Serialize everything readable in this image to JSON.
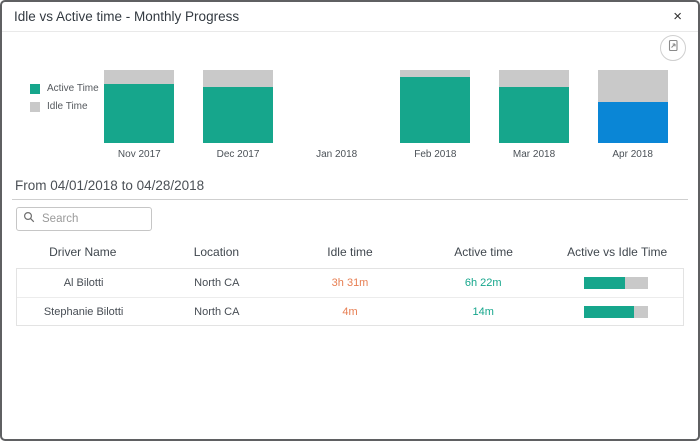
{
  "dialog": {
    "title": "Idle vs Active time - Monthly Progress",
    "close_label": "×"
  },
  "toolbar": {
    "export_icon": "export-image-icon"
  },
  "chart_data": {
    "type": "bar",
    "stacked": true,
    "normalized_to_pct": true,
    "categories": [
      "Nov 2017",
      "Dec 2017",
      "Jan 2018",
      "Feb 2018",
      "Mar 2018",
      "Apr 2018"
    ],
    "series": [
      {
        "name": "Active Time",
        "color": "#16a68c",
        "values_pct": [
          81,
          77,
          0,
          90,
          77,
          56
        ]
      },
      {
        "name": "Idle Time",
        "color": "#c9c9c9",
        "values_pct": [
          19,
          23,
          0,
          10,
          23,
          44
        ]
      }
    ],
    "selected_category": "Apr 2018",
    "selected_color": "#0a86d6",
    "legend_position": "left",
    "xlabel": "",
    "ylabel": ""
  },
  "period": {
    "label": "From 04/01/2018 to 04/28/2018"
  },
  "search": {
    "placeholder": "Search",
    "value": ""
  },
  "table": {
    "columns": [
      "Driver Name",
      "Location",
      "Idle time",
      "Active time",
      "Active vs Idle Time"
    ],
    "rows": [
      {
        "driver": "Al Bilotti",
        "location": "North CA",
        "idle": "3h 31m",
        "active": "6h 22m",
        "active_pct": 64
      },
      {
        "driver": "Stephanie Bilotti",
        "location": "North CA",
        "idle": "4m",
        "active": "14m",
        "active_pct": 78
      }
    ]
  },
  "colors": {
    "active_text": "#16a68c",
    "idle_text": "#e77e52",
    "bar_active": "#16a68c",
    "bar_idle": "#c9c9c9",
    "bar_selected": "#0a86d6",
    "progress_track": "#c9c9c9"
  }
}
